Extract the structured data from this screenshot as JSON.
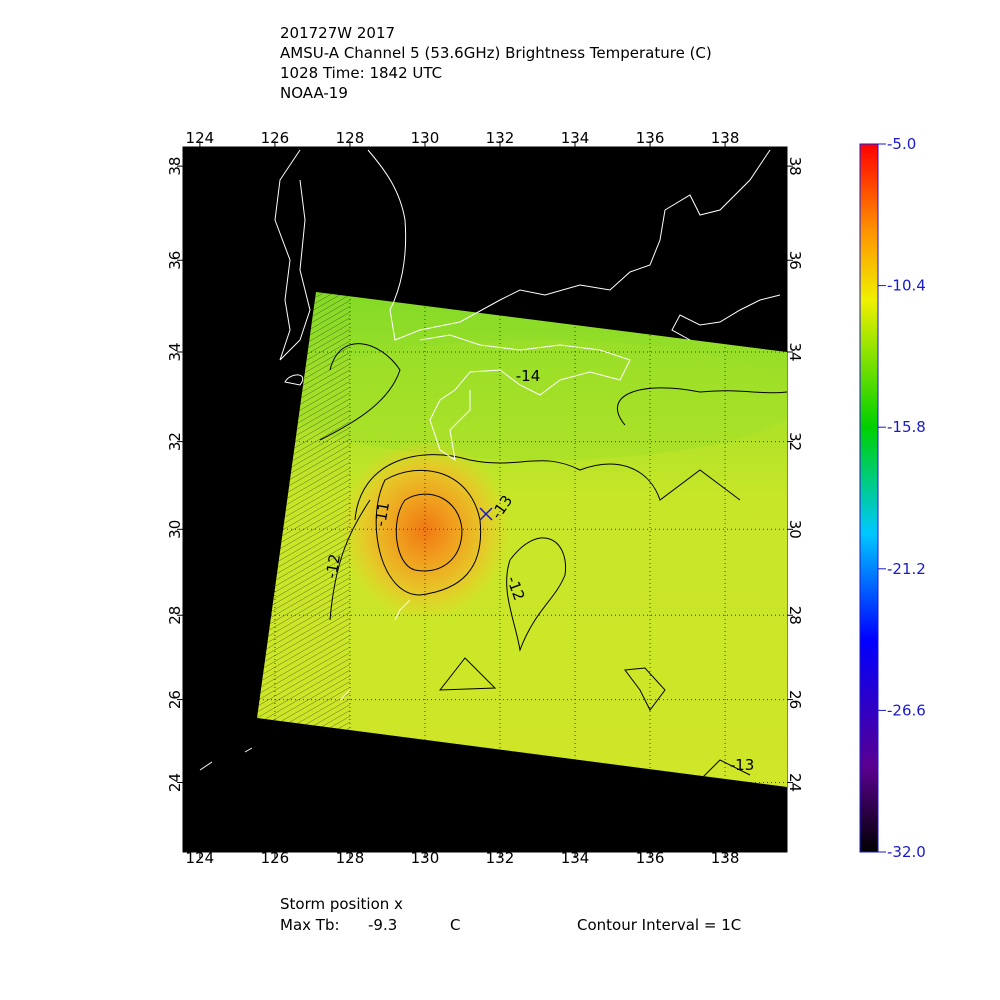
{
  "title_lines": [
    "201727W 2017",
    "AMSU-A Channel 5 (53.6GHz) Brightness Temperature (C)",
    "1028 Time: 1842 UTC",
    "NOAA-19"
  ],
  "map": {
    "xlim": [
      123.55,
      139.65
    ],
    "ylim": [
      22.3,
      38.4
    ],
    "xticks": [
      124,
      126,
      128,
      130,
      132,
      134,
      136,
      138
    ],
    "yticks": [
      24,
      26,
      28,
      30,
      32,
      34,
      36,
      38
    ]
  },
  "colorbar": {
    "lim": [
      -32,
      -5
    ],
    "ticks": [
      {
        "value": -5,
        "label": "-5.0"
      },
      -10.4,
      -15.8,
      -21.2,
      -26.6,
      {
        "value": -32,
        "label": "-32.0"
      }
    ]
  },
  "contour_labels": [
    "-14",
    "-13",
    "-12",
    "-11",
    "-12",
    "-13"
  ],
  "footer": {
    "storm": "Storm position x",
    "max_tb_label": "Max Tb:",
    "max_tb_value": "-9.3",
    "max_tb_unit": "C",
    "interval": "Contour Interval = 1C"
  }
}
